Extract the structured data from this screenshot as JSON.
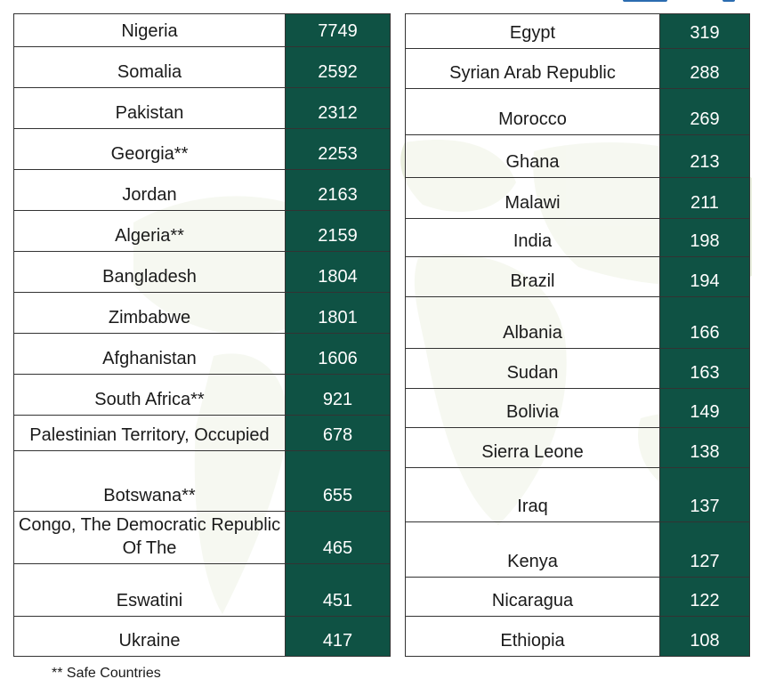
{
  "colors": {
    "value_cell_bg": "#0f5244",
    "value_text": "#ffffff",
    "map_tint": "#e8eedb"
  },
  "left_table": [
    {
      "country": "Nigeria",
      "value": "7749"
    },
    {
      "country": "Somalia",
      "value": "2592"
    },
    {
      "country": "Pakistan",
      "value": "2312"
    },
    {
      "country": "Georgia**",
      "value": "2253"
    },
    {
      "country": "Jordan",
      "value": "2163"
    },
    {
      "country": "Algeria**",
      "value": "2159"
    },
    {
      "country": "Bangladesh",
      "value": "1804"
    },
    {
      "country": "Zimbabwe",
      "value": "1801"
    },
    {
      "country": "Afghanistan",
      "value": "1606"
    },
    {
      "country": "South Africa**",
      "value": "921"
    },
    {
      "country": "Palestinian Territory, Occupied",
      "value": "678"
    },
    {
      "country": "Botswana**",
      "value": "655"
    },
    {
      "country": "Congo, The Democratic Republic Of The",
      "value": "465"
    },
    {
      "country": "Eswatini",
      "value": "451"
    },
    {
      "country": "Ukraine",
      "value": "417"
    }
  ],
  "right_table": [
    {
      "country": "Egypt",
      "value": "319"
    },
    {
      "country": "Syrian Arab Republic",
      "value": "288"
    },
    {
      "country": "Morocco",
      "value": "269"
    },
    {
      "country": "Ghana",
      "value": "213"
    },
    {
      "country": "Malawi",
      "value": "211"
    },
    {
      "country": "India",
      "value": "198"
    },
    {
      "country": "Brazil",
      "value": "194"
    },
    {
      "country": "Albania",
      "value": "166"
    },
    {
      "country": "Sudan",
      "value": "163"
    },
    {
      "country": "Bolivia",
      "value": "149"
    },
    {
      "country": "Sierra Leone",
      "value": "138"
    },
    {
      "country": "Iraq",
      "value": "137"
    },
    {
      "country": "Kenya",
      "value": "127"
    },
    {
      "country": "Nicaragua",
      "value": "122"
    },
    {
      "country": "Ethiopia",
      "value": "108"
    }
  ],
  "footnote": "** Safe Countries"
}
